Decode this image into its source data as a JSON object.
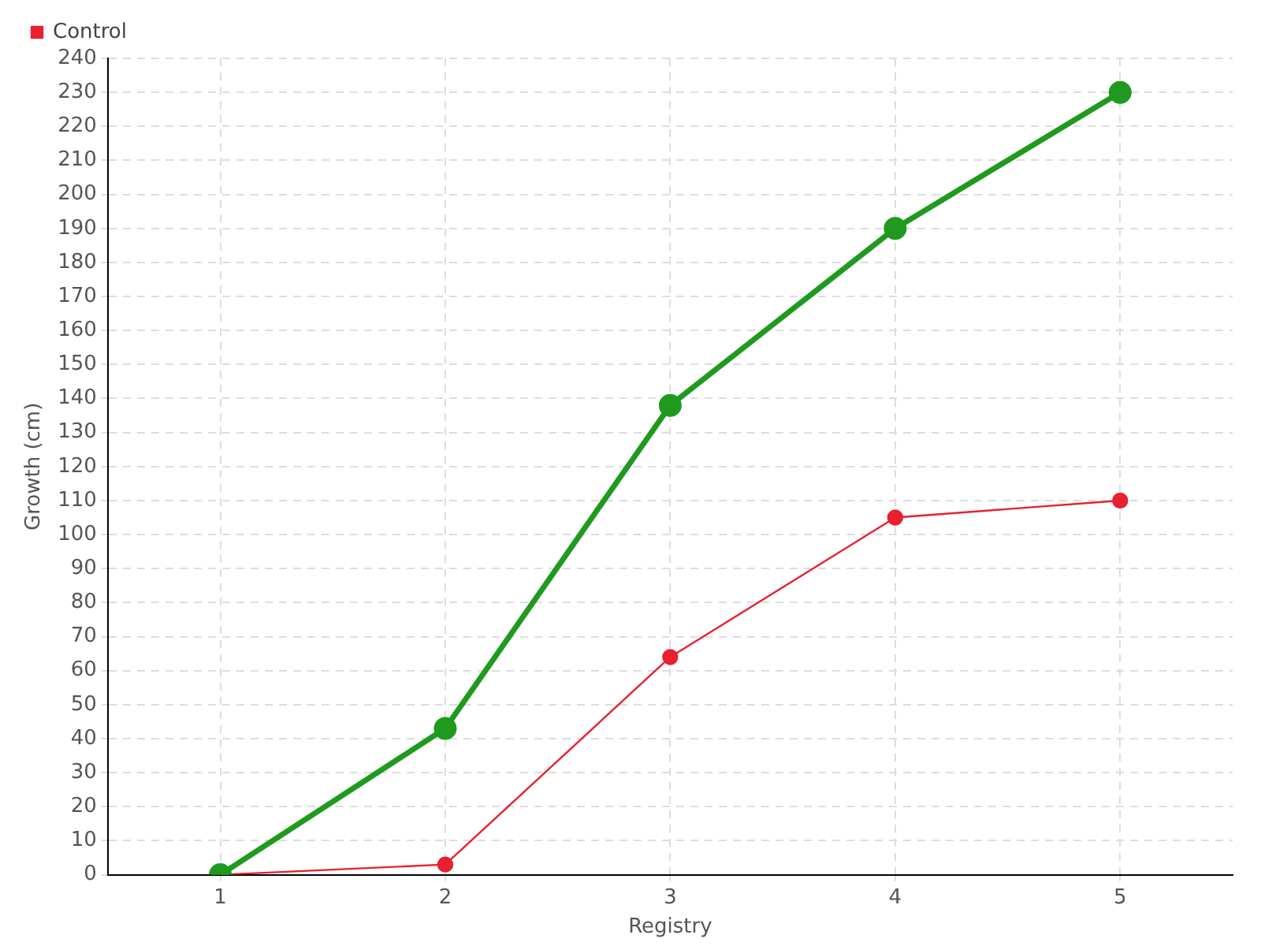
{
  "chart_data": {
    "type": "line",
    "xlabel": "Registry",
    "ylabel": "Growth (cm)",
    "categories": [
      "1",
      "2",
      "3",
      "4",
      "5"
    ],
    "series": [
      {
        "color": "#1f9a1f",
        "values": [
          0,
          43,
          138,
          190,
          230
        ]
      },
      {
        "name": "Control",
        "color": "#e8202f",
        "values": [
          0,
          3,
          64,
          105,
          110
        ]
      }
    ],
    "ylim": [
      0,
      240
    ],
    "yticks": [
      0,
      10,
      20,
      30,
      40,
      50,
      60,
      70,
      80,
      90,
      100,
      110,
      120,
      130,
      140,
      150,
      160,
      170,
      180,
      190,
      200,
      210,
      220,
      230,
      240
    ],
    "grid": true,
    "legend": "top left",
    "marker": "circle",
    "line_style": "solid"
  }
}
